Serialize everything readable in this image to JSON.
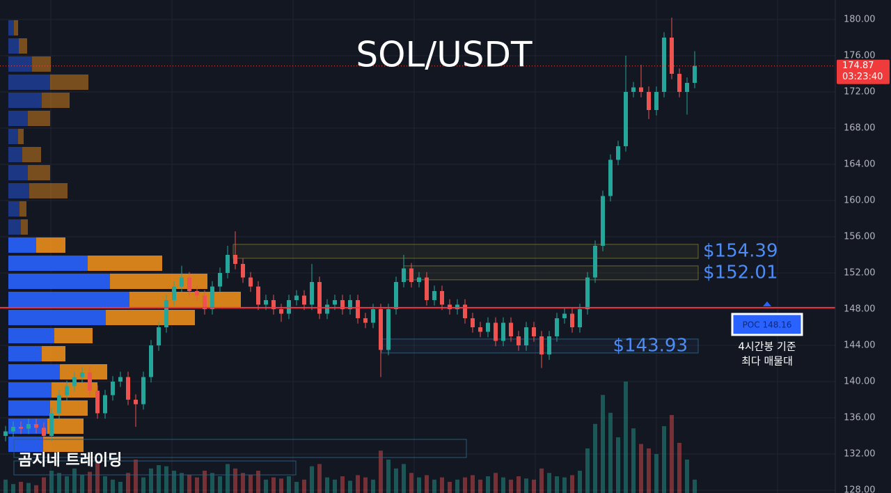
{
  "chart_data": {
    "type": "candlestick",
    "title": "SOL/USDT",
    "up_color": "#26a69a",
    "down_color": "#ef5350",
    "ylim": [
      128,
      180
    ],
    "yticks": [
      {
        "value": 128,
        "label": "128.00"
      },
      {
        "value": 132,
        "label": "132.00"
      },
      {
        "value": 136,
        "label": "136.00"
      },
      {
        "value": 140,
        "label": "140.00"
      },
      {
        "value": 144,
        "label": "144.00"
      },
      {
        "value": 148,
        "label": "148.00"
      },
      {
        "value": 152,
        "label": "152.00"
      },
      {
        "value": 156,
        "label": "156.00"
      },
      {
        "value": 160,
        "label": "160.00"
      },
      {
        "value": 164,
        "label": "164.00"
      },
      {
        "value": 168,
        "label": "168.00"
      },
      {
        "value": 172,
        "label": "172.00"
      },
      {
        "value": 176,
        "label": "176.00"
      },
      {
        "value": 180,
        "label": "180.00"
      }
    ],
    "grid": true,
    "candles": [
      [
        134,
        135.1,
        133.4,
        134.5
      ],
      [
        134.5,
        135.6,
        133.9,
        135
      ],
      [
        135,
        135.6,
        134.2,
        134.8
      ],
      [
        134.8,
        135.9,
        134.2,
        135.3
      ],
      [
        135.3,
        135.9,
        134.3,
        134.9
      ],
      [
        134.9,
        135.5,
        133.4,
        134
      ],
      [
        134,
        137.1,
        133.4,
        136.5
      ],
      [
        136.5,
        139.1,
        135.9,
        138.5
      ],
      [
        138.5,
        140.1,
        137.9,
        139.5
      ],
      [
        139.5,
        141.1,
        138.9,
        140.5
      ],
      [
        140.5,
        141.6,
        139.9,
        141
      ],
      [
        141,
        141.6,
        138.4,
        139
      ],
      [
        139,
        139.6,
        135.9,
        136.5
      ],
      [
        136.5,
        139.1,
        135.9,
        138.5
      ],
      [
        138.5,
        140.6,
        137.9,
        140
      ],
      [
        140,
        141.1,
        139.4,
        140.5
      ],
      [
        140.5,
        141.1,
        137.4,
        138
      ],
      [
        138,
        138.6,
        135,
        137.5
      ],
      [
        137.5,
        141.1,
        136.9,
        140.5
      ],
      [
        140.5,
        144.6,
        139.9,
        144
      ],
      [
        144,
        146.6,
        143.4,
        146
      ],
      [
        146,
        149.6,
        145.4,
        149
      ],
      [
        149,
        151.1,
        148.4,
        150.5
      ],
      [
        150.5,
        152.8,
        149.9,
        151.5
      ],
      [
        151.5,
        152.1,
        149.4,
        150
      ],
      [
        150,
        150.6,
        148.9,
        149.5
      ],
      [
        149.5,
        150.1,
        147.4,
        148
      ],
      [
        148,
        151.1,
        147.4,
        150.5
      ],
      [
        150.5,
        152.6,
        149.9,
        152
      ],
      [
        152,
        155,
        151.4,
        154
      ],
      [
        154,
        156.6,
        152.4,
        153
      ],
      [
        153,
        153.6,
        150.9,
        151.5
      ],
      [
        151.5,
        152.1,
        149.9,
        150.5
      ],
      [
        150.5,
        151.1,
        147.9,
        148.5
      ],
      [
        148.5,
        149.6,
        147.9,
        149
      ],
      [
        149,
        149.6,
        147.4,
        148
      ],
      [
        148,
        148.6,
        146.6,
        147.5
      ],
      [
        147.5,
        149.6,
        146.9,
        149
      ],
      [
        149,
        150.1,
        148.4,
        149.5
      ],
      [
        149.5,
        150.1,
        147.9,
        148.5
      ],
      [
        148.5,
        153,
        147.9,
        151
      ],
      [
        151,
        151.6,
        146.9,
        147.5
      ],
      [
        147.5,
        149.1,
        146.9,
        148.5
      ],
      [
        148.5,
        149.6,
        147.9,
        149
      ],
      [
        149,
        149.6,
        147.4,
        148
      ],
      [
        148,
        149.6,
        147.4,
        149
      ],
      [
        149,
        149.6,
        146.4,
        147
      ],
      [
        147,
        147.6,
        145.9,
        146.5
      ],
      [
        146.5,
        148.6,
        145.9,
        148
      ],
      [
        148,
        148.6,
        140.5,
        143.5
      ],
      [
        143.5,
        148.6,
        142.9,
        148
      ],
      [
        148,
        151.6,
        147.4,
        151
      ],
      [
        151,
        154,
        150.4,
        152.5
      ],
      [
        152.5,
        153.1,
        150.4,
        151
      ],
      [
        151,
        152.1,
        150.4,
        151.5
      ],
      [
        151.5,
        152.1,
        148.4,
        149
      ],
      [
        149,
        150.6,
        148.4,
        150
      ],
      [
        150,
        150.6,
        147.9,
        148.5
      ],
      [
        148.5,
        149.1,
        147.4,
        148
      ],
      [
        148,
        149.1,
        147.4,
        148.5
      ],
      [
        148.5,
        149.1,
        146.4,
        147
      ],
      [
        147,
        147.6,
        145.4,
        146
      ],
      [
        146,
        146.6,
        144.9,
        145.5
      ],
      [
        145.5,
        147.1,
        144.9,
        146.5
      ],
      [
        146.5,
        147.1,
        143.9,
        144.5
      ],
      [
        144.5,
        147.1,
        143.9,
        146.5
      ],
      [
        146.5,
        147.1,
        144.4,
        145
      ],
      [
        145,
        145.6,
        143.4,
        144
      ],
      [
        144,
        146.6,
        143.4,
        146
      ],
      [
        146,
        146.6,
        144.4,
        145
      ],
      [
        145,
        145.6,
        141.5,
        143
      ],
      [
        143,
        145.6,
        142.4,
        145
      ],
      [
        145,
        147.6,
        144.4,
        147
      ],
      [
        147,
        148.1,
        146.4,
        147.5
      ],
      [
        147.5,
        148.1,
        145.4,
        146
      ],
      [
        146,
        148.6,
        145.4,
        148
      ],
      [
        148,
        152.1,
        147.4,
        151.5
      ],
      [
        151.5,
        155.6,
        150.9,
        155
      ],
      [
        155,
        161.1,
        154.4,
        160.5
      ],
      [
        160.5,
        165.1,
        159.9,
        164.5
      ],
      [
        164.5,
        166.6,
        163.9,
        166
      ],
      [
        166,
        176,
        165.4,
        172
      ],
      [
        172,
        173.1,
        171.4,
        172.5
      ],
      [
        172.5,
        175,
        171.4,
        172
      ],
      [
        172,
        172.6,
        169,
        170
      ],
      [
        170,
        172.6,
        169.4,
        172
      ],
      [
        172,
        178.6,
        171.4,
        178
      ],
      [
        178,
        180.2,
        173.4,
        174
      ],
      [
        174,
        174.6,
        171.4,
        172
      ],
      [
        172,
        173.6,
        169.5,
        173
      ],
      [
        173,
        176.5,
        172.4,
        174.87
      ]
    ],
    "volumes": [
      12,
      8,
      10,
      9,
      7,
      14,
      20,
      18,
      15,
      22,
      16,
      19,
      28,
      15,
      12,
      10,
      18,
      30,
      14,
      22,
      25,
      24,
      20,
      18,
      16,
      14,
      20,
      18,
      15,
      26,
      22,
      18,
      16,
      20,
      12,
      14,
      13,
      15,
      10,
      12,
      24,
      26,
      14,
      12,
      15,
      11,
      16,
      14,
      12,
      38,
      30,
      22,
      26,
      18,
      14,
      16,
      12,
      14,
      10,
      12,
      14,
      16,
      12,
      15,
      18,
      14,
      12,
      15,
      13,
      12,
      22,
      18,
      15,
      14,
      16,
      20,
      40,
      62,
      88,
      72,
      50,
      100,
      58,
      44,
      40,
      35,
      60,
      70,
      45,
      30,
      12
    ],
    "volume_profile": {
      "up_color": "#2962ff",
      "down_color": "#f7931a",
      "up": [
        8,
        15,
        34,
        60,
        48,
        28,
        14,
        20,
        28,
        30,
        16,
        18,
        40,
        114,
        146,
        174,
        140,
        66,
        48,
        74,
        62,
        60,
        56,
        50
      ],
      "down": [
        6,
        12,
        27,
        55,
        40,
        32,
        8,
        27,
        32,
        55,
        10,
        10,
        42,
        107,
        140,
        160,
        128,
        55,
        34,
        68,
        66,
        54,
        52,
        58
      ]
    },
    "levels": [
      {
        "value": 154.39,
        "label": "$154.39"
      },
      {
        "value": 152.01,
        "label": "$152.01"
      },
      {
        "value": 143.93,
        "label": "$143.93"
      }
    ],
    "poc": {
      "value": 148.16,
      "label": "POC 148.16"
    },
    "last_price": 174.87,
    "countdown": "03:23:40",
    "annotation": [
      "4시간봉 기준",
      "최다 매물대"
    ],
    "watermark": "곰지네 트레이딩"
  }
}
